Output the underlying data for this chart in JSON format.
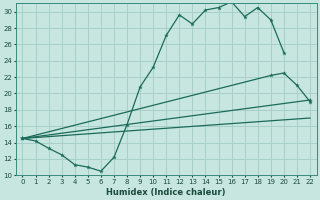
{
  "xlabel": "Humidex (Indice chaleur)",
  "bg_color": "#c8e6e0",
  "grid_color": "#a8d0c8",
  "line_color": "#1a6b5a",
  "xlim": [
    -0.5,
    22.5
  ],
  "ylim": [
    10,
    31
  ],
  "yticks": [
    10,
    12,
    14,
    16,
    18,
    20,
    22,
    24,
    26,
    28,
    30
  ],
  "xticks": [
    0,
    1,
    2,
    3,
    4,
    5,
    6,
    7,
    8,
    9,
    10,
    11,
    12,
    13,
    14,
    15,
    16,
    17,
    18,
    19,
    20,
    21,
    22
  ],
  "curve1_x": [
    0,
    1,
    2,
    3,
    4,
    5,
    6,
    7,
    8,
    9,
    10,
    11,
    12,
    13,
    14,
    15,
    16,
    17,
    18,
    19,
    20
  ],
  "curve1_y": [
    14.5,
    14.2,
    13.3,
    12.5,
    11.3,
    11.0,
    10.5,
    12.2,
    16.2,
    20.8,
    23.2,
    27.1,
    29.6,
    28.5,
    30.2,
    30.5,
    31.2,
    29.4,
    30.5,
    29.0,
    25.0
  ],
  "curve2_x": [
    0,
    19,
    20,
    21,
    22
  ],
  "curve2_y": [
    14.5,
    22.2,
    22.5,
    21.0,
    19.0
  ],
  "curve3_x": [
    0,
    22
  ],
  "curve3_y": [
    14.5,
    19.2
  ],
  "curve4_x": [
    0,
    22
  ],
  "curve4_y": [
    14.5,
    17.0
  ]
}
